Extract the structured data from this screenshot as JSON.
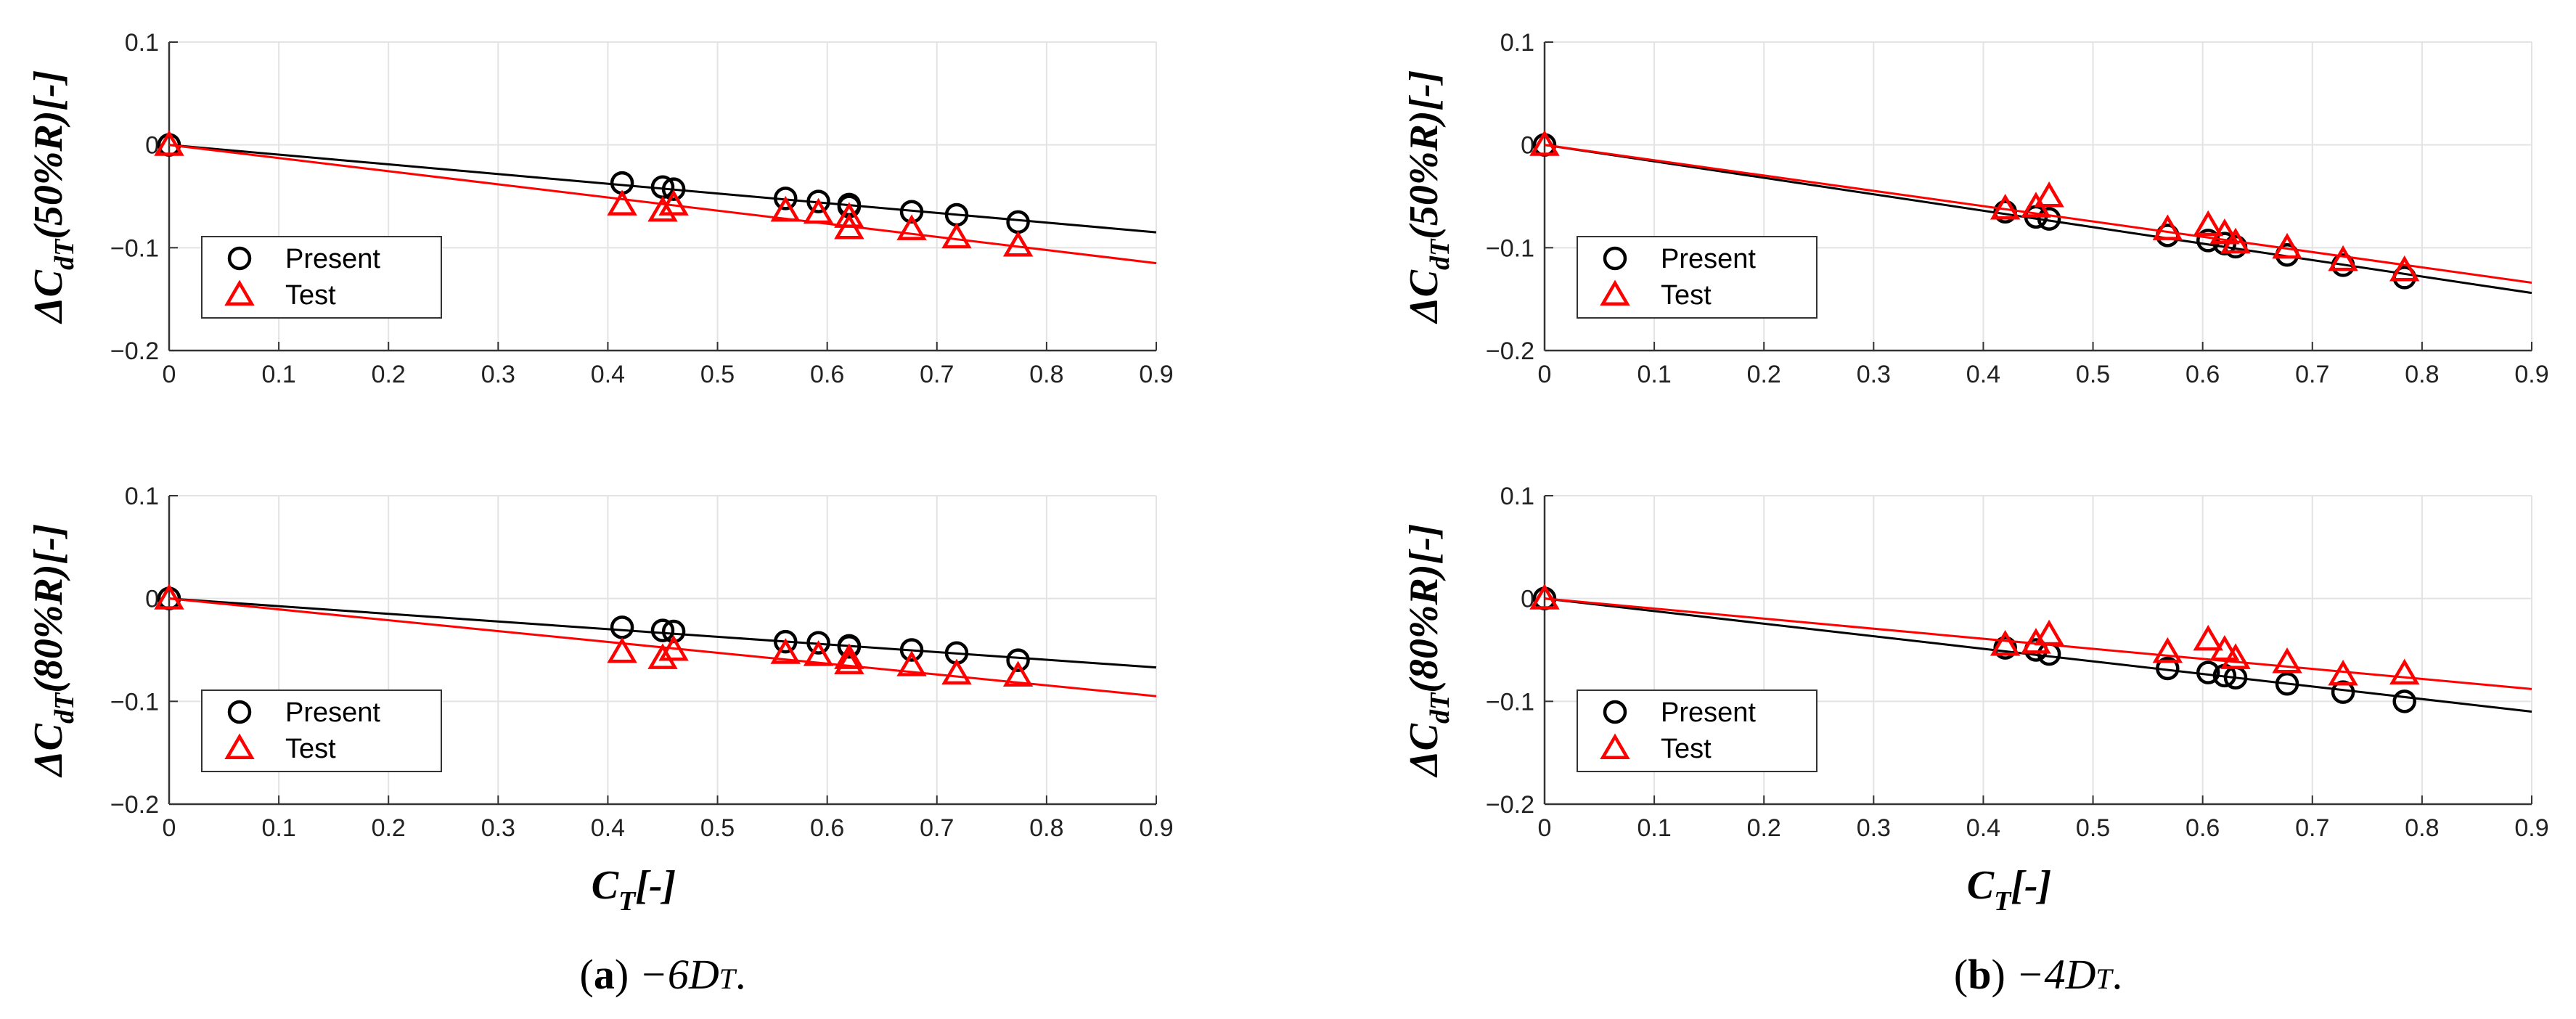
{
  "figure": {
    "captions": [
      {
        "label": "a",
        "text": " −6D",
        "sub": "T",
        "tail": "."
      },
      {
        "label": "b",
        "text": " −4D",
        "sub": "T",
        "tail": "."
      }
    ]
  },
  "series_styles": {
    "Present": {
      "color": "#000000",
      "marker": "circle"
    },
    "Test": {
      "color": "#ff0000",
      "marker": "triangle"
    }
  },
  "chart_data": [
    {
      "id": "a-top",
      "type": "scatter",
      "ylabel": {
        "main": "ΔC",
        "sub": "dT",
        "tail": "(50%R)[-]"
      },
      "xlabel": null,
      "xlim": [
        0,
        0.9
      ],
      "ylim": [
        -0.2,
        0.1
      ],
      "grid": true,
      "legend": "bottom-left",
      "xticks": [
        "0",
        "0.1",
        "0.2",
        "0.3",
        "0.4",
        "0.5",
        "0.6",
        "0.7",
        "0.8",
        "0.9"
      ],
      "yticks": [
        "0.1",
        "0",
        "−0.1",
        "−0.2"
      ],
      "series": [
        {
          "name": "Present",
          "x": [
            0,
            0.413,
            0.45,
            0.46,
            0.562,
            0.592,
            0.62,
            0.62,
            0.677,
            0.718,
            0.774
          ],
          "y": [
            0,
            -0.037,
            -0.041,
            -0.043,
            -0.052,
            -0.055,
            -0.058,
            -0.06,
            -0.065,
            -0.068,
            -0.075
          ],
          "fit": [
            [
              0,
              0
            ],
            [
              0.9,
              -0.085
            ]
          ]
        },
        {
          "name": "Test",
          "x": [
            0,
            0.413,
            0.45,
            0.46,
            0.562,
            0.592,
            0.62,
            0.62,
            0.677,
            0.718,
            0.774
          ],
          "y": [
            0,
            -0.058,
            -0.064,
            -0.058,
            -0.064,
            -0.066,
            -0.07,
            -0.081,
            -0.082,
            -0.09,
            -0.098
          ],
          "fit": [
            [
              0,
              0
            ],
            [
              0.9,
              -0.115
            ]
          ]
        }
      ]
    },
    {
      "id": "a-bottom",
      "type": "scatter",
      "ylabel": {
        "main": "ΔC",
        "sub": "dT",
        "tail": "(80%R)[-]"
      },
      "xlabel": {
        "main": "C",
        "sub": "T",
        "tail": "[-]"
      },
      "xlim": [
        0,
        0.9
      ],
      "ylim": [
        -0.2,
        0.1
      ],
      "grid": true,
      "legend": "bottom-left",
      "xticks": [
        "0",
        "0.1",
        "0.2",
        "0.3",
        "0.4",
        "0.5",
        "0.6",
        "0.7",
        "0.8",
        "0.9"
      ],
      "yticks": [
        "0.1",
        "0",
        "−0.1",
        "−0.2"
      ],
      "series": [
        {
          "name": "Present",
          "x": [
            0,
            0.413,
            0.45,
            0.46,
            0.562,
            0.592,
            0.62,
            0.62,
            0.677,
            0.718,
            0.774
          ],
          "y": [
            0,
            -0.028,
            -0.031,
            -0.032,
            -0.042,
            -0.043,
            -0.046,
            -0.047,
            -0.05,
            -0.053,
            -0.06
          ],
          "fit": [
            [
              0,
              0
            ],
            [
              0.9,
              -0.067
            ]
          ]
        },
        {
          "name": "Test",
          "x": [
            0,
            0.413,
            0.45,
            0.46,
            0.562,
            0.592,
            0.62,
            0.62,
            0.677,
            0.718,
            0.774
          ],
          "y": [
            0,
            -0.052,
            -0.058,
            -0.05,
            -0.053,
            -0.055,
            -0.058,
            -0.063,
            -0.065,
            -0.073,
            -0.075
          ],
          "fit": [
            [
              0,
              0
            ],
            [
              0.9,
              -0.095
            ]
          ]
        }
      ]
    },
    {
      "id": "b-top",
      "type": "scatter",
      "ylabel": {
        "main": "ΔC",
        "sub": "dT",
        "tail": "(50%R)[-]"
      },
      "xlabel": null,
      "xlim": [
        0,
        0.9
      ],
      "ylim": [
        -0.2,
        0.1
      ],
      "grid": true,
      "legend": "bottom-left",
      "xticks": [
        "0",
        "0.1",
        "0.2",
        "0.3",
        "0.4",
        "0.5",
        "0.6",
        "0.7",
        "0.8",
        "0.9"
      ],
      "yticks": [
        "0.1",
        "0",
        "−0.1",
        "−0.2"
      ],
      "series": [
        {
          "name": "Present",
          "x": [
            0,
            0.42,
            0.448,
            0.46,
            0.568,
            0.605,
            0.62,
            0.63,
            0.677,
            0.728,
            0.784
          ],
          "y": [
            0,
            -0.065,
            -0.07,
            -0.072,
            -0.088,
            -0.093,
            -0.096,
            -0.099,
            -0.107,
            -0.117,
            -0.129
          ],
          "fit": [
            [
              0,
              0
            ],
            [
              0.9,
              -0.144
            ]
          ]
        },
        {
          "name": "Test",
          "x": [
            0,
            0.42,
            0.448,
            0.46,
            0.568,
            0.605,
            0.62,
            0.63,
            0.677,
            0.728,
            0.784
          ],
          "y": [
            0,
            -0.062,
            -0.06,
            -0.05,
            -0.082,
            -0.078,
            -0.086,
            -0.095,
            -0.1,
            -0.112,
            -0.122
          ],
          "fit": [
            [
              0,
              0
            ],
            [
              0.9,
              -0.134
            ]
          ]
        }
      ]
    },
    {
      "id": "b-bottom",
      "type": "scatter",
      "ylabel": {
        "main": "ΔC",
        "sub": "dT",
        "tail": "(80%R)[-]"
      },
      "xlabel": {
        "main": "C",
        "sub": "T",
        "tail": "[-]"
      },
      "xlim": [
        0,
        0.9
      ],
      "ylim": [
        -0.2,
        0.1
      ],
      "grid": true,
      "legend": "bottom-left",
      "xticks": [
        "0",
        "0.1",
        "0.2",
        "0.3",
        "0.4",
        "0.5",
        "0.6",
        "0.7",
        "0.8",
        "0.9"
      ],
      "yticks": [
        "0.1",
        "0",
        "−0.1",
        "−0.2"
      ],
      "series": [
        {
          "name": "Present",
          "x": [
            0,
            0.42,
            0.448,
            0.46,
            0.568,
            0.605,
            0.62,
            0.63,
            0.677,
            0.728,
            0.784
          ],
          "y": [
            0,
            -0.048,
            -0.05,
            -0.054,
            -0.068,
            -0.072,
            -0.075,
            -0.077,
            -0.083,
            -0.091,
            -0.1
          ],
          "fit": [
            [
              0,
              0
            ],
            [
              0.9,
              -0.11
            ]
          ]
        },
        {
          "name": "Test",
          "x": [
            0,
            0.42,
            0.448,
            0.46,
            0.568,
            0.605,
            0.62,
            0.63,
            0.677,
            0.728,
            0.784
          ],
          "y": [
            0,
            -0.045,
            -0.043,
            -0.035,
            -0.052,
            -0.04,
            -0.05,
            -0.058,
            -0.062,
            -0.074,
            -0.073
          ],
          "fit": [
            [
              0,
              0
            ],
            [
              0.9,
              -0.088
            ]
          ]
        }
      ]
    }
  ]
}
